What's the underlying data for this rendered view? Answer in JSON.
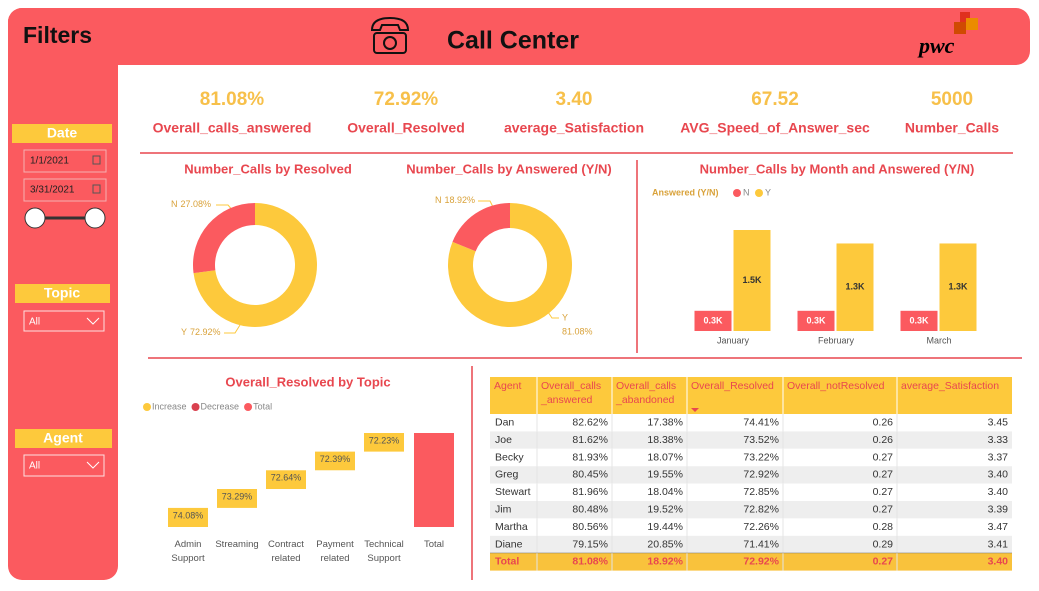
{
  "header": {
    "filters_title": "Filters",
    "title": "Call Center",
    "logo": "pwc"
  },
  "filters": {
    "date_label": "Date",
    "date_from": "1/1/2021",
    "date_to": "3/31/2021",
    "topic_label": "Topic",
    "topic_value": "All",
    "agent_label": "Agent",
    "agent_value": "All"
  },
  "kpis": [
    {
      "value": "81.08%",
      "label": "Overall_calls_answered"
    },
    {
      "value": "72.92%",
      "label": "Overall_Resolved"
    },
    {
      "value": "3.40",
      "label": "average_Satisfaction"
    },
    {
      "value": "67.52",
      "label": "AVG_Speed_of_Answer_sec"
    },
    {
      "value": "5000",
      "label": "Number_Calls"
    }
  ],
  "chart_data": [
    {
      "type": "donut",
      "title": "Number_Calls by Resolved",
      "categories": [
        "N",
        "Y"
      ],
      "values": [
        27.08,
        72.92
      ],
      "value_labels": [
        "27.08%",
        "72.92%"
      ],
      "colors": [
        "#fb5a5f",
        "#fdc93c"
      ]
    },
    {
      "type": "donut",
      "title": "Number_Calls by Answered (Y/N)",
      "categories": [
        "N",
        "Y"
      ],
      "values": [
        18.92,
        81.08
      ],
      "value_labels": [
        "18.92%",
        "81.08%"
      ],
      "colors": [
        "#fb5a5f",
        "#fdc93c"
      ]
    },
    {
      "type": "bar",
      "title": "Number_Calls by Month and Answered (Y/N)",
      "legend_title": "Answered (Y/N)",
      "categories": [
        "January",
        "February",
        "March"
      ],
      "series": [
        {
          "name": "N",
          "color": "#fb5a5f",
          "values": [
            300,
            300,
            300
          ],
          "value_labels": [
            "0.3K",
            "0.3K",
            "0.3K"
          ]
        },
        {
          "name": "Y",
          "color": "#fdc93c",
          "values": [
            1500,
            1300,
            1300
          ],
          "value_labels": [
            "1.5K",
            "1.3K",
            "1.3K"
          ]
        }
      ]
    },
    {
      "type": "waterfall",
      "title": "Overall_Resolved by Topic",
      "legend": [
        {
          "name": "Increase",
          "color": "#fdc93c"
        },
        {
          "name": "Decrease",
          "color": "#d9414f"
        },
        {
          "name": "Total",
          "color": "#fb5a5f"
        }
      ],
      "categories": [
        "Admin Support",
        "Streaming",
        "Contract related",
        "Payment related",
        "Technical Support"
      ],
      "values": [
        74.08,
        73.29,
        72.64,
        72.39,
        72.23
      ],
      "value_labels": [
        "74.08%",
        "73.29%",
        "72.64%",
        "72.39%",
        "72.23%"
      ],
      "total_label": "Total"
    }
  ],
  "table": {
    "headers": [
      [
        "Agent"
      ],
      [
        "Overall_calls",
        "_answered"
      ],
      [
        "Overall_calls",
        "_abandoned"
      ],
      [
        "Overall_Resolved"
      ],
      [
        "Overall_notResolved"
      ],
      [
        "average_Satisfaction"
      ]
    ],
    "rows": [
      [
        "Dan",
        "82.62%",
        "17.38%",
        "74.41%",
        "0.26",
        "3.45"
      ],
      [
        "Joe",
        "81.62%",
        "18.38%",
        "73.52%",
        "0.26",
        "3.33"
      ],
      [
        "Becky",
        "81.93%",
        "18.07%",
        "73.22%",
        "0.27",
        "3.37"
      ],
      [
        "Greg",
        "80.45%",
        "19.55%",
        "72.92%",
        "0.27",
        "3.40"
      ],
      [
        "Stewart",
        "81.96%",
        "18.04%",
        "72.85%",
        "0.27",
        "3.40"
      ],
      [
        "Jim",
        "80.48%",
        "19.52%",
        "72.82%",
        "0.27",
        "3.39"
      ],
      [
        "Martha",
        "80.56%",
        "19.44%",
        "72.26%",
        "0.28",
        "3.47"
      ],
      [
        "Diane",
        "79.15%",
        "20.85%",
        "71.41%",
        "0.29",
        "3.41"
      ]
    ],
    "total": [
      "Total",
      "81.08%",
      "18.92%",
      "72.92%",
      "0.27",
      "3.40"
    ]
  }
}
